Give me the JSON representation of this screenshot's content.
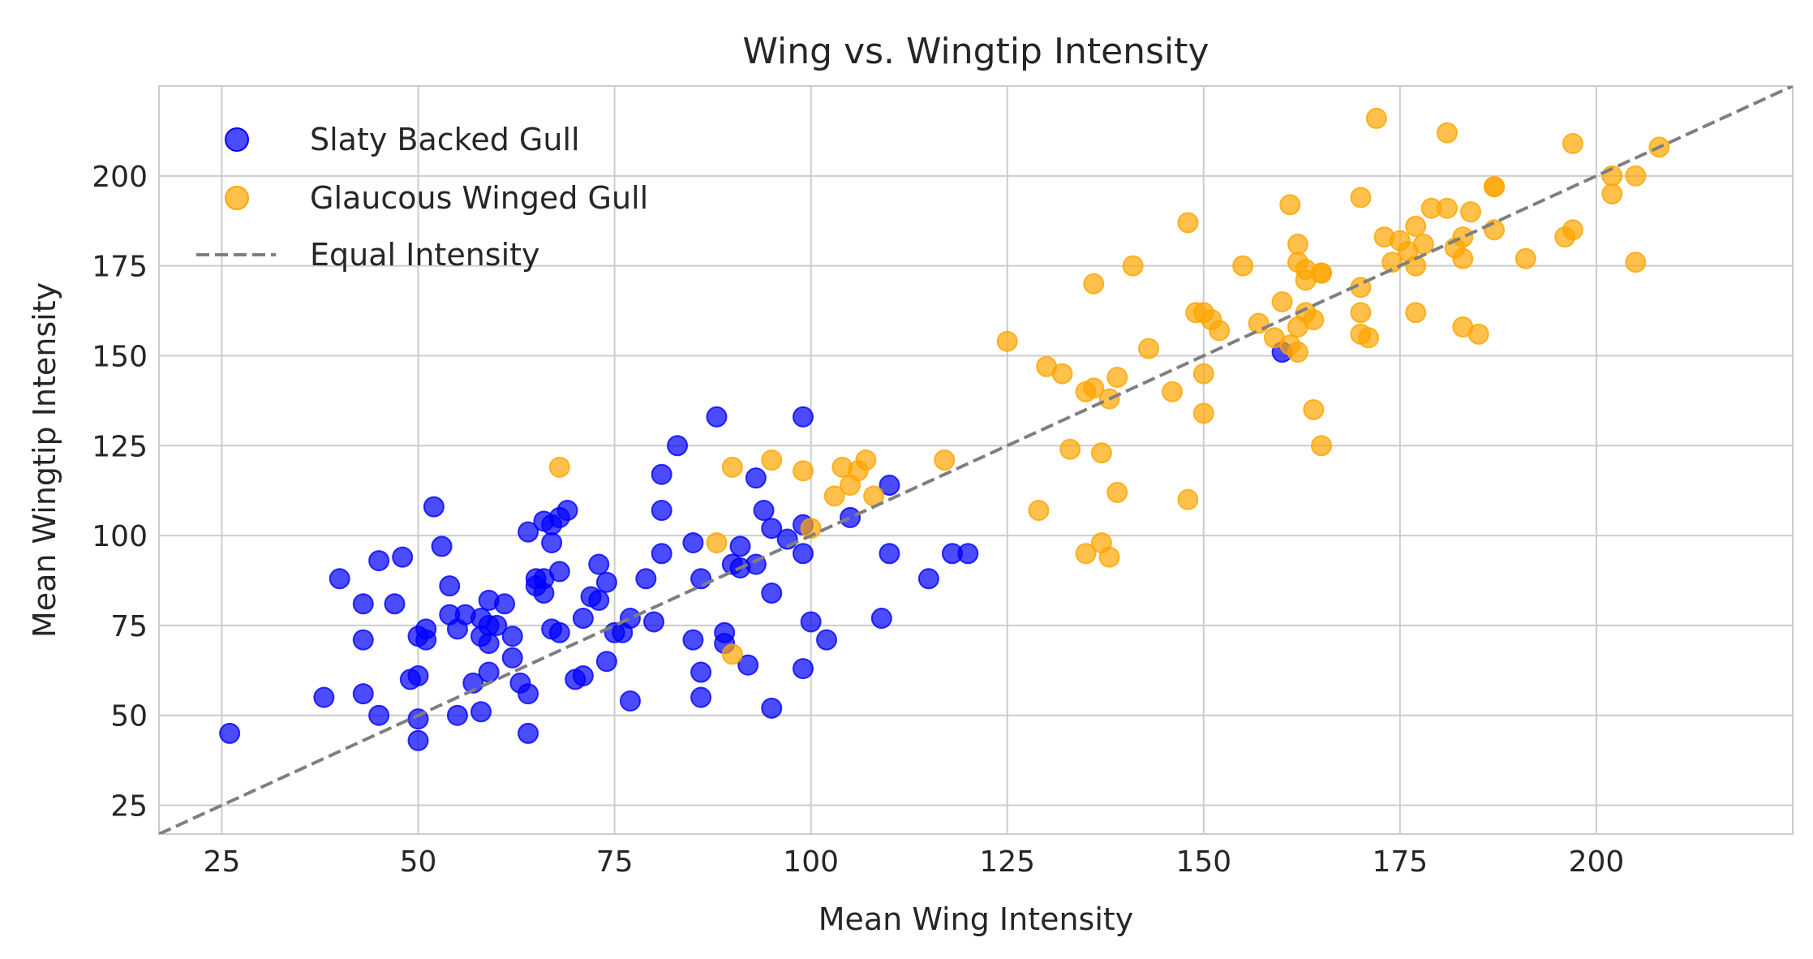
{
  "chart_data": {
    "type": "scatter",
    "title": "Wing vs. Wingtip Intensity",
    "xlabel": "Mean Wing Intensity",
    "ylabel": "Mean Wingtip Intensity",
    "xlim": [
      17,
      225
    ],
    "ylim": [
      17,
      225
    ],
    "xticks": [
      25,
      50,
      75,
      100,
      125,
      150,
      175,
      200
    ],
    "yticks": [
      25,
      50,
      75,
      100,
      125,
      150,
      175,
      200
    ],
    "grid": true,
    "legend_position": "top-left",
    "series": [
      {
        "name": "Slaty Backed Gull",
        "color": "#0000ff",
        "points": [
          [
            26,
            45
          ],
          [
            38,
            55
          ],
          [
            40,
            88
          ],
          [
            43,
            81
          ],
          [
            43,
            71
          ],
          [
            43,
            56
          ],
          [
            45,
            50
          ],
          [
            45,
            93
          ],
          [
            47,
            81
          ],
          [
            48,
            94
          ],
          [
            49,
            60
          ],
          [
            50,
            72
          ],
          [
            50,
            61
          ],
          [
            50,
            43
          ],
          [
            50,
            49
          ],
          [
            51,
            74
          ],
          [
            51,
            71
          ],
          [
            52,
            108
          ],
          [
            53,
            97
          ],
          [
            54,
            86
          ],
          [
            54,
            78
          ],
          [
            55,
            74
          ],
          [
            55,
            50
          ],
          [
            56,
            78
          ],
          [
            57,
            59
          ],
          [
            58,
            51
          ],
          [
            58,
            72
          ],
          [
            58,
            77
          ],
          [
            59,
            82
          ],
          [
            59,
            70
          ],
          [
            59,
            75
          ],
          [
            59,
            62
          ],
          [
            60,
            75
          ],
          [
            61,
            81
          ],
          [
            62,
            72
          ],
          [
            62,
            66
          ],
          [
            63,
            59
          ],
          [
            64,
            101
          ],
          [
            64,
            56
          ],
          [
            64,
            45
          ],
          [
            65,
            86
          ],
          [
            65,
            88
          ],
          [
            66,
            88
          ],
          [
            66,
            104
          ],
          [
            66,
            84
          ],
          [
            67,
            74
          ],
          [
            67,
            103
          ],
          [
            67,
            98
          ],
          [
            68,
            105
          ],
          [
            68,
            90
          ],
          [
            68,
            73
          ],
          [
            69,
            107
          ],
          [
            70,
            60
          ],
          [
            71,
            61
          ],
          [
            71,
            77
          ],
          [
            72,
            83
          ],
          [
            73,
            82
          ],
          [
            73,
            92
          ],
          [
            74,
            87
          ],
          [
            74,
            65
          ],
          [
            75,
            73
          ],
          [
            76,
            73
          ],
          [
            77,
            77
          ],
          [
            77,
            54
          ],
          [
            79,
            88
          ],
          [
            80,
            76
          ],
          [
            81,
            95
          ],
          [
            81,
            107
          ],
          [
            81,
            117
          ],
          [
            83,
            125
          ],
          [
            85,
            98
          ],
          [
            85,
            71
          ],
          [
            86,
            88
          ],
          [
            86,
            62
          ],
          [
            86,
            55
          ],
          [
            88,
            133
          ],
          [
            89,
            73
          ],
          [
            89,
            70
          ],
          [
            90,
            92
          ],
          [
            91,
            91
          ],
          [
            91,
            97
          ],
          [
            92,
            64
          ],
          [
            93,
            92
          ],
          [
            93,
            116
          ],
          [
            94,
            107
          ],
          [
            95,
            102
          ],
          [
            95,
            84
          ],
          [
            95,
            52
          ],
          [
            97,
            99
          ],
          [
            99,
            103
          ],
          [
            99,
            95
          ],
          [
            99,
            133
          ],
          [
            99,
            63
          ],
          [
            100,
            76
          ],
          [
            102,
            71
          ],
          [
            105,
            105
          ],
          [
            109,
            77
          ],
          [
            110,
            114
          ],
          [
            110,
            95
          ],
          [
            115,
            88
          ],
          [
            118,
            95
          ],
          [
            120,
            95
          ],
          [
            160,
            151
          ]
        ]
      },
      {
        "name": "Glaucous Winged Gull",
        "color": "#ffa500",
        "points": [
          [
            68,
            119
          ],
          [
            88,
            98
          ],
          [
            90,
            67
          ],
          [
            90,
            119
          ],
          [
            95,
            121
          ],
          [
            99,
            118
          ],
          [
            100,
            102
          ],
          [
            103,
            111
          ],
          [
            104,
            119
          ],
          [
            105,
            114
          ],
          [
            106,
            118
          ],
          [
            107,
            121
          ],
          [
            108,
            111
          ],
          [
            117,
            121
          ],
          [
            125,
            154
          ],
          [
            129,
            107
          ],
          [
            130,
            147
          ],
          [
            132,
            145
          ],
          [
            133,
            124
          ],
          [
            135,
            140
          ],
          [
            135,
            95
          ],
          [
            136,
            141
          ],
          [
            136,
            170
          ],
          [
            137,
            98
          ],
          [
            137,
            123
          ],
          [
            138,
            94
          ],
          [
            138,
            138
          ],
          [
            139,
            144
          ],
          [
            139,
            112
          ],
          [
            141,
            175
          ],
          [
            143,
            152
          ],
          [
            146,
            140
          ],
          [
            148,
            110
          ],
          [
            148,
            187
          ],
          [
            149,
            162
          ],
          [
            150,
            145
          ],
          [
            150,
            162
          ],
          [
            150,
            134
          ],
          [
            151,
            160
          ],
          [
            152,
            157
          ],
          [
            155,
            175
          ],
          [
            157,
            159
          ],
          [
            159,
            155
          ],
          [
            160,
            165
          ],
          [
            161,
            192
          ],
          [
            161,
            153
          ],
          [
            162,
            176
          ],
          [
            162,
            181
          ],
          [
            162,
            151
          ],
          [
            162,
            158
          ],
          [
            163,
            171
          ],
          [
            163,
            174
          ],
          [
            163,
            162
          ],
          [
            164,
            160
          ],
          [
            164,
            135
          ],
          [
            165,
            173
          ],
          [
            165,
            173
          ],
          [
            165,
            125
          ],
          [
            170,
            162
          ],
          [
            170,
            156
          ],
          [
            170,
            194
          ],
          [
            170,
            169
          ],
          [
            171,
            155
          ],
          [
            172,
            216
          ],
          [
            173,
            183
          ],
          [
            174,
            176
          ],
          [
            175,
            182
          ],
          [
            176,
            179
          ],
          [
            177,
            175
          ],
          [
            177,
            186
          ],
          [
            177,
            162
          ],
          [
            178,
            181
          ],
          [
            179,
            191
          ],
          [
            181,
            191
          ],
          [
            181,
            212
          ],
          [
            182,
            180
          ],
          [
            183,
            177
          ],
          [
            183,
            183
          ],
          [
            183,
            158
          ],
          [
            184,
            190
          ],
          [
            185,
            156
          ],
          [
            187,
            185
          ],
          [
            187,
            197
          ],
          [
            187,
            197
          ],
          [
            191,
            177
          ],
          [
            196,
            183
          ],
          [
            197,
            209
          ],
          [
            197,
            185
          ],
          [
            202,
            200
          ],
          [
            202,
            195
          ],
          [
            205,
            200
          ],
          [
            205,
            176
          ],
          [
            208,
            208
          ]
        ]
      }
    ],
    "reference_line": {
      "name": "Equal Intensity",
      "color": "#7f7f7f",
      "from": [
        17,
        17
      ],
      "to": [
        225,
        225
      ]
    }
  }
}
